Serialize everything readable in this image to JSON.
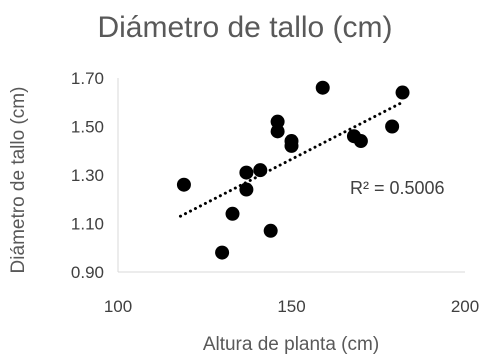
{
  "chart_data": {
    "type": "scatter",
    "title": "Diámetro de tallo (cm)",
    "xlabel": "Altura de planta (cm)",
    "ylabel": "Diámetro de tallo (cm)",
    "xlim": [
      100,
      200
    ],
    "ylim": [
      0.9,
      1.7
    ],
    "xticks": [
      "100",
      "150",
      "200"
    ],
    "yticks": [
      "0.90",
      "1.10",
      "1.30",
      "1.50",
      "1.70"
    ],
    "points": [
      {
        "x": 119,
        "y": 1.26
      },
      {
        "x": 130,
        "y": 0.98
      },
      {
        "x": 133,
        "y": 1.14
      },
      {
        "x": 137,
        "y": 1.31
      },
      {
        "x": 137,
        "y": 1.24
      },
      {
        "x": 141,
        "y": 1.32
      },
      {
        "x": 144,
        "y": 1.07
      },
      {
        "x": 146,
        "y": 1.52
      },
      {
        "x": 146,
        "y": 1.48
      },
      {
        "x": 150,
        "y": 1.44
      },
      {
        "x": 150,
        "y": 1.42
      },
      {
        "x": 159,
        "y": 1.66
      },
      {
        "x": 168,
        "y": 1.46
      },
      {
        "x": 170,
        "y": 1.44
      },
      {
        "x": 179,
        "y": 1.5
      },
      {
        "x": 182,
        "y": 1.64
      }
    ],
    "trendline": {
      "type": "linear",
      "x": [
        118,
        182
      ],
      "y": [
        1.13,
        1.6
      ],
      "label": "R² = 0.5006"
    },
    "grid": false,
    "legend": "none",
    "marker_color": "#000000"
  }
}
